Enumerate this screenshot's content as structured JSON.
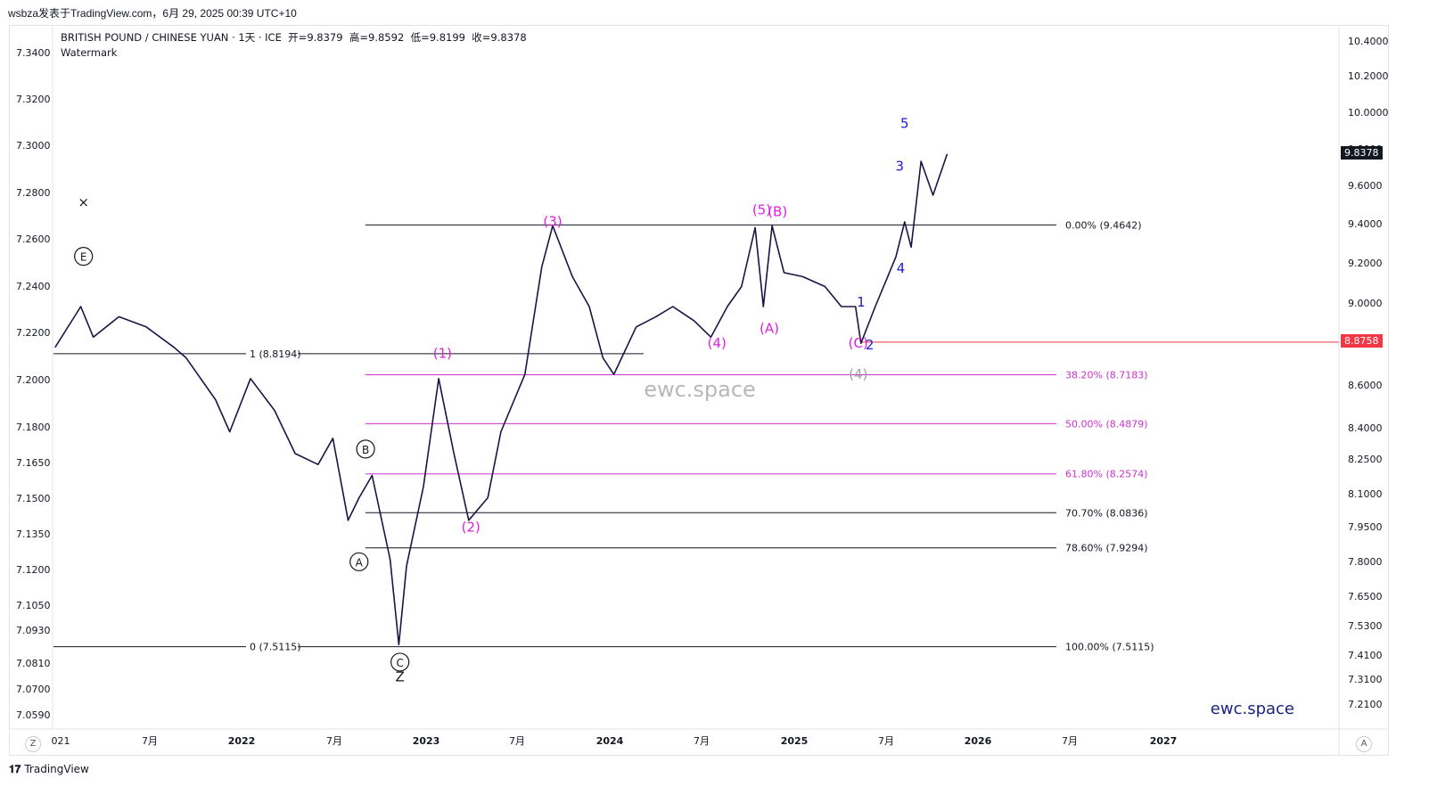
{
  "header": {
    "publisher_line": "wsbza发表于TradingView.com，6月 29, 2025 00:39 UTC+10"
  },
  "legend": {
    "symbol": "BRITISH POUND / CHINESE YUAN · 1天 · ICE",
    "open_label": "开",
    "open": "9.8379",
    "high_label": "高",
    "high": "9.8592",
    "low_label": "低",
    "low": "9.8199",
    "close_label": "收",
    "close": "9.8378",
    "watermark_label": "Watermark"
  },
  "watermarks": {
    "center": "ewc.space",
    "corner": "ewc.space"
  },
  "footer": {
    "brand": "TradingView"
  },
  "axis_buttons": {
    "left": "Z",
    "right": "A"
  },
  "price_tags": {
    "current": "9.8378",
    "red_line": "8.8758"
  },
  "colors": {
    "price_line": "#1a1446",
    "magenta": "#e020e0",
    "blue": "#1a1ad8",
    "black": "#131722",
    "red": "#f23645",
    "fib_magenta": "#cc33cc",
    "gray": "#a0a0a0"
  },
  "chart_data": {
    "type": "line",
    "symbol": "BRITISH POUND / CHINESE YUAN",
    "interval": "1天",
    "log_scale": true,
    "left_axis_ticks": [
      "7.3400",
      "7.3200",
      "7.3000",
      "7.2800",
      "7.2600",
      "7.2400",
      "7.2200",
      "7.2000",
      "7.1800",
      "7.1650",
      "7.1500",
      "7.1350",
      "7.1200",
      "7.1050",
      "7.0930",
      "7.0810",
      "7.0700",
      "7.0590"
    ],
    "right_axis_ticks": [
      "10.4000",
      "10.2000",
      "10.0000",
      "9.8000",
      "9.6000",
      "9.4000",
      "9.2000",
      "9.0000",
      "8.8000",
      "8.6000",
      "8.4000",
      "8.2500",
      "8.1000",
      "7.9500",
      "7.8000",
      "7.6500",
      "7.5300",
      "7.4100",
      "7.3100",
      "7.2100"
    ],
    "x_ticks": [
      "021",
      "7月",
      "2022",
      "7月",
      "2023",
      "7月",
      "2024",
      "7月",
      "2025",
      "7月",
      "2026",
      "7月",
      "2027"
    ],
    "series": [
      {
        "x": [
          "2021-01-04",
          "2021-02-20",
          "2021-03-15",
          "2021-05-01",
          "2021-06-20",
          "2021-08-10",
          "2021-09-01",
          "2021-10-25",
          "2021-11-20",
          "2021-12-28",
          "2022-02-10",
          "2022-03-20",
          "2022-05-01",
          "2022-05-28",
          "2022-06-25",
          "2022-07-15",
          "2022-08-08",
          "2022-09-10",
          "2022-09-26",
          "2022-10-10",
          "2022-11-10",
          "2022-12-08",
          "2023-01-05",
          "2023-02-01",
          "2023-03-08",
          "2023-04-01",
          "2023-05-15",
          "2023-06-15",
          "2023-07-05",
          "2023-08-10",
          "2023-09-10",
          "2023-10-05",
          "2023-10-25",
          "2023-12-05",
          "2024-01-10",
          "2024-02-10",
          "2024-03-20",
          "2024-04-20",
          "2024-05-20",
          "2024-06-15",
          "2024-07-10",
          "2024-07-25",
          "2024-08-10",
          "2024-09-01",
          "2024-10-05",
          "2024-11-15",
          "2024-12-15",
          "2025-01-10",
          "2025-01-20",
          "2025-02-15",
          "2025-03-10",
          "2025-03-25",
          "2025-04-10",
          "2025-04-22",
          "2025-05-10",
          "2025-06-01",
          "2025-06-27"
        ],
        "y": [
          8.85,
          9.05,
          8.9,
          9.0,
          8.95,
          8.85,
          8.8,
          8.6,
          8.45,
          8.7,
          8.55,
          8.35,
          8.3,
          8.42,
          8.05,
          8.15,
          8.25,
          7.88,
          7.52,
          7.85,
          8.2,
          8.7,
          8.35,
          8.05,
          8.15,
          8.45,
          8.72,
          9.25,
          9.46,
          9.2,
          9.05,
          8.8,
          8.72,
          8.95,
          9.0,
          9.05,
          8.98,
          8.9,
          9.05,
          9.15,
          9.45,
          9.05,
          9.46,
          9.22,
          9.2,
          9.15,
          9.05,
          9.05,
          8.87,
          9.05,
          9.2,
          9.3,
          9.48,
          9.35,
          9.8,
          9.62,
          9.84
        ]
      }
    ],
    "levels": [
      {
        "label": "0.00% (9.4642)",
        "value": 9.4642
      },
      {
        "label": "38.20% (8.7183)",
        "value": 8.7183
      },
      {
        "label": "50.00% (8.4879)",
        "value": 8.4879
      },
      {
        "label": "61.80% (8.2574)",
        "value": 8.2574
      },
      {
        "label": "70.70% (8.0836)",
        "value": 8.0836
      },
      {
        "label": "78.60% (7.9294)",
        "value": 7.9294
      },
      {
        "label": "100.00% (7.5115)",
        "value": 7.5115
      },
      {
        "label": "1 (8.8194)",
        "value": 8.8194
      },
      {
        "label": "0 (7.5115)",
        "value": 7.5115
      }
    ],
    "horizontal_line": {
      "value": 8.8758
    },
    "wave_labels": [
      {
        "text": "×",
        "x": "2021-02-25",
        "y": 9.56
      },
      {
        "text": "E",
        "x": "2021-02-25",
        "y": 9.28,
        "circled": true
      },
      {
        "text": "B",
        "x": "2022-07-27",
        "y": 8.35,
        "circled": true
      },
      {
        "text": "A",
        "x": "2022-07-15",
        "y": 7.85,
        "circled": true
      },
      {
        "text": "C",
        "x": "2022-09-28",
        "y": 7.43,
        "circled": true
      },
      {
        "text": "Z",
        "x": "2022-09-28",
        "y": 7.37
      },
      {
        "text": "(1)",
        "x": "2022-12-15",
        "y": 8.8
      },
      {
        "text": "(2)",
        "x": "2023-02-05",
        "y": 8.0
      },
      {
        "text": "(3)",
        "x": "2023-07-05",
        "y": 9.46
      },
      {
        "text": "(4)",
        "x": "2024-05-01",
        "y": 8.85
      },
      {
        "text": "(5)",
        "x": "2024-07-22",
        "y": 9.52
      },
      {
        "text": "(B)",
        "x": "2024-08-20",
        "y": 9.51
      },
      {
        "text": "(A)",
        "x": "2024-08-05",
        "y": 8.92
      },
      {
        "text": "(C)",
        "x": "2025-01-15",
        "y": 8.85
      },
      {
        "text": "(4)",
        "x": "2025-01-15",
        "y": 8.7
      },
      {
        "text": "1",
        "x": "2025-01-20",
        "y": 9.05
      },
      {
        "text": "2",
        "x": "2025-02-05",
        "y": 8.84
      },
      {
        "text": "3",
        "x": "2025-04-01",
        "y": 9.75
      },
      {
        "text": "4",
        "x": "2025-04-03",
        "y": 9.22
      },
      {
        "text": "5",
        "x": "2025-04-10",
        "y": 9.98
      }
    ]
  }
}
